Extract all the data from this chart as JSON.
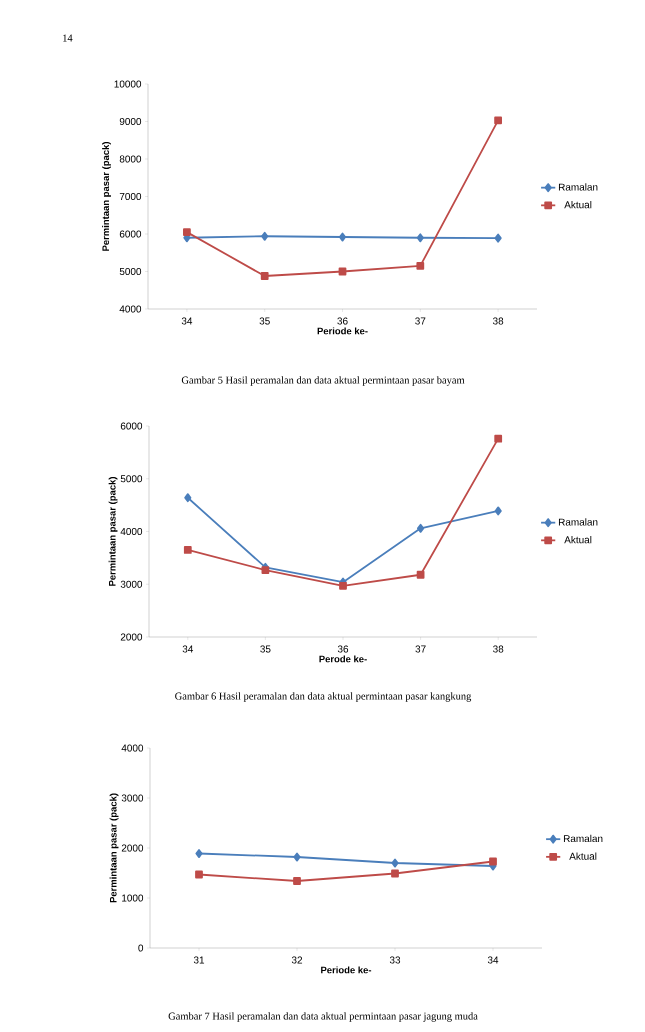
{
  "chart_data": [
    {
      "type": "line",
      "categories": [
        "34",
        "35",
        "36",
        "37",
        "38"
      ],
      "xlabel": "Periode ke-",
      "ylabel": "Permintaan pasar (pack)",
      "ylim": [
        4000,
        10000
      ],
      "yticks": [
        4000,
        5000,
        6000,
        7000,
        8000,
        9000,
        10000
      ],
      "legend": "right",
      "grid": false,
      "annotations": [
        "14",
        "Gambar 5  Hasil peramalan dan data aktual permintaan pasar bayam"
      ],
      "series": [
        {
          "name": "Ramalan",
          "color": "#4a7ebb",
          "marker": "diamond",
          "values": [
            5900,
            5940,
            5920,
            5900,
            5890
          ]
        },
        {
          "name": "Aktual",
          "color": "#be4b48",
          "marker": "square",
          "values": [
            6050,
            4880,
            5000,
            5150,
            9030
          ]
        }
      ]
    },
    {
      "type": "line",
      "categories": [
        "34",
        "35",
        "36",
        "37",
        "38"
      ],
      "xlabel": "Perode ke-",
      "ylabel": "Permintaan pasar (pack)",
      "ylim": [
        2000,
        6000
      ],
      "yticks": [
        2000,
        3000,
        4000,
        5000,
        6000
      ],
      "legend": "right",
      "grid": false,
      "annotations": [
        "Gambar 6  Hasil peramalan dan data aktual permintaan pasar kangkung"
      ],
      "series": [
        {
          "name": "Ramalan",
          "color": "#4a7ebb",
          "marker": "diamond",
          "values": [
            4640,
            3320,
            3040,
            4060,
            4390
          ]
        },
        {
          "name": "Aktual",
          "color": "#be4b48",
          "marker": "square",
          "values": [
            3650,
            3270,
            2970,
            3180,
            5760
          ]
        }
      ]
    },
    {
      "type": "line",
      "categories": [
        "31",
        "32",
        "33",
        "34"
      ],
      "xlabel": "Periode ke-",
      "ylabel": "Permintaan pasar (pack)",
      "ylim": [
        0,
        4000
      ],
      "yticks": [
        0,
        1000,
        2000,
        3000,
        4000
      ],
      "legend": "right",
      "grid": false,
      "annotations": [
        "Gambar 7  Hasil peramalan dan data aktual permintaan pasar jagung muda"
      ],
      "series": [
        {
          "name": "Ramalan",
          "color": "#4a7ebb",
          "marker": "diamond",
          "values": [
            1890,
            1820,
            1700,
            1640
          ]
        },
        {
          "name": "Aktual",
          "color": "#be4b48",
          "marker": "square",
          "values": [
            1470,
            1340,
            1490,
            1730
          ]
        }
      ]
    }
  ]
}
